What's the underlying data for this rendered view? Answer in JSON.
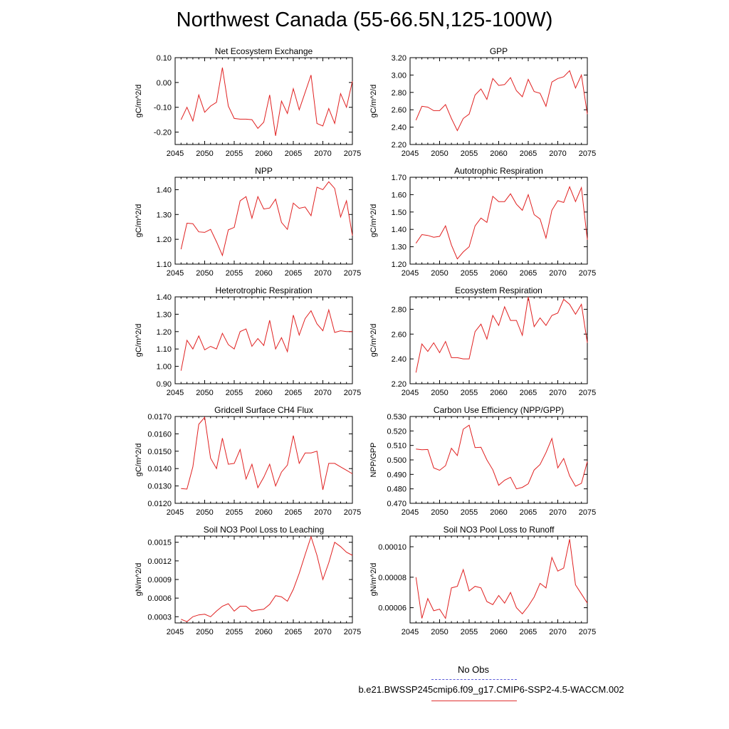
{
  "title": "Northwest Canada (55-66.5N,125-100W)",
  "legend": {
    "obs_label": "No Obs",
    "case_label": "b.e21.BWSSP245cmip6.f09_g17.CMIP6-SSP2-4.5-WACCM.002",
    "obs_color": "#5a5ad8",
    "case_color": "#e02020"
  },
  "chart_data": [
    {
      "type": "line",
      "title": "Net Ecosystem Exchange",
      "ylabel": "gC/m^2/d",
      "x_ticks": [
        "2045",
        "2050",
        "2055",
        "2060",
        "2065",
        "2070",
        "2075"
      ],
      "y_ticks": [
        "0.10",
        "0.00",
        "-0.10",
        "-0.20"
      ],
      "ylim": [
        -0.25,
        0.1
      ],
      "xlim": [
        2045,
        2075
      ],
      "series": [
        {
          "x": [
            2046,
            2047,
            2048,
            2049,
            2050,
            2051,
            2052,
            2053,
            2054,
            2055,
            2056,
            2057,
            2058,
            2059,
            2060,
            2061,
            2062,
            2063,
            2064,
            2065,
            2066,
            2067,
            2068,
            2069,
            2070,
            2071,
            2072,
            2073,
            2074,
            2075
          ],
          "values": [
            -0.15,
            -0.1,
            -0.155,
            -0.05,
            -0.12,
            -0.095,
            -0.08,
            0.06,
            -0.095,
            -0.145,
            -0.148,
            -0.148,
            -0.15,
            -0.185,
            -0.16,
            -0.05,
            -0.215,
            -0.075,
            -0.125,
            -0.025,
            -0.11,
            -0.04,
            0.03,
            -0.165,
            -0.175,
            -0.105,
            -0.165,
            -0.045,
            -0.1,
            0.005
          ]
        }
      ]
    },
    {
      "type": "line",
      "title": "GPP",
      "ylabel": "gC/m^2/d",
      "x_ticks": [
        "2045",
        "2050",
        "2055",
        "2060",
        "2065",
        "2070",
        "2075"
      ],
      "y_ticks": [
        "3.20",
        "3.00",
        "2.80",
        "2.60",
        "2.40",
        "2.20"
      ],
      "ylim": [
        2.2,
        3.2
      ],
      "xlim": [
        2045,
        2075
      ],
      "series": [
        {
          "x": [
            2046,
            2047,
            2048,
            2049,
            2050,
            2051,
            2052,
            2053,
            2054,
            2055,
            2056,
            2057,
            2058,
            2059,
            2060,
            2061,
            2062,
            2063,
            2064,
            2065,
            2066,
            2067,
            2068,
            2069,
            2070,
            2071,
            2072,
            2073,
            2074,
            2075
          ],
          "values": [
            2.48,
            2.64,
            2.63,
            2.59,
            2.59,
            2.66,
            2.5,
            2.36,
            2.5,
            2.55,
            2.77,
            2.84,
            2.72,
            2.96,
            2.88,
            2.89,
            2.97,
            2.82,
            2.75,
            2.95,
            2.81,
            2.79,
            2.64,
            2.92,
            2.96,
            2.98,
            3.05,
            2.85,
            3.0,
            2.55
          ]
        }
      ]
    },
    {
      "type": "line",
      "title": "NPP",
      "ylabel": "gC/m^2/d",
      "x_ticks": [
        "2045",
        "2050",
        "2055",
        "2060",
        "2065",
        "2070",
        "2075"
      ],
      "y_ticks": [
        "1.40",
        "1.30",
        "1.20",
        "1.10"
      ],
      "ylim": [
        1.1,
        1.45
      ],
      "xlim": [
        2045,
        2075
      ],
      "series": [
        {
          "x": [
            2046,
            2047,
            2048,
            2049,
            2050,
            2051,
            2052,
            2053,
            2054,
            2055,
            2056,
            2057,
            2058,
            2059,
            2060,
            2061,
            2062,
            2063,
            2064,
            2065,
            2066,
            2067,
            2068,
            2069,
            2070,
            2071,
            2072,
            2073,
            2074,
            2075
          ],
          "values": [
            1.16,
            1.265,
            1.263,
            1.23,
            1.228,
            1.24,
            1.19,
            1.135,
            1.238,
            1.248,
            1.355,
            1.372,
            1.285,
            1.372,
            1.322,
            1.326,
            1.362,
            1.268,
            1.24,
            1.346,
            1.325,
            1.33,
            1.295,
            1.41,
            1.4,
            1.432,
            1.405,
            1.29,
            1.355,
            1.215
          ]
        }
      ]
    },
    {
      "type": "line",
      "title": "Autotrophic Respiration",
      "ylabel": "gC/m^2/d",
      "x_ticks": [
        "2045",
        "2050",
        "2055",
        "2060",
        "2065",
        "2070",
        "2075"
      ],
      "y_ticks": [
        "1.70",
        "1.60",
        "1.50",
        "1.40",
        "1.30",
        "1.20"
      ],
      "ylim": [
        1.2,
        1.7
      ],
      "xlim": [
        2045,
        2075
      ],
      "series": [
        {
          "x": [
            2046,
            2047,
            2048,
            2049,
            2050,
            2051,
            2052,
            2053,
            2054,
            2055,
            2056,
            2057,
            2058,
            2059,
            2060,
            2061,
            2062,
            2063,
            2064,
            2065,
            2066,
            2067,
            2068,
            2069,
            2070,
            2071,
            2072,
            2073,
            2074,
            2075
          ],
          "values": [
            1.32,
            1.37,
            1.365,
            1.355,
            1.36,
            1.42,
            1.31,
            1.23,
            1.27,
            1.3,
            1.42,
            1.465,
            1.44,
            1.59,
            1.56,
            1.56,
            1.605,
            1.545,
            1.51,
            1.6,
            1.485,
            1.46,
            1.35,
            1.51,
            1.565,
            1.555,
            1.645,
            1.56,
            1.64,
            1.34
          ]
        }
      ]
    },
    {
      "type": "line",
      "title": "Heterotrophic Respiration",
      "ylabel": "gC/m^2/d",
      "x_ticks": [
        "2045",
        "2050",
        "2055",
        "2060",
        "2065",
        "2070",
        "2075"
      ],
      "y_ticks": [
        "1.40",
        "1.30",
        "1.20",
        "1.10",
        "1.00",
        "0.90"
      ],
      "ylim": [
        0.9,
        1.4
      ],
      "xlim": [
        2045,
        2075
      ],
      "series": [
        {
          "x": [
            2046,
            2047,
            2048,
            2049,
            2050,
            2051,
            2052,
            2053,
            2054,
            2055,
            2056,
            2057,
            2058,
            2059,
            2060,
            2061,
            2062,
            2063,
            2064,
            2065,
            2066,
            2067,
            2068,
            2069,
            2070,
            2071,
            2072,
            2073,
            2074,
            2075
          ],
          "values": [
            0.975,
            1.15,
            1.1,
            1.175,
            1.095,
            1.115,
            1.1,
            1.19,
            1.125,
            1.1,
            1.2,
            1.215,
            1.115,
            1.16,
            1.12,
            1.265,
            1.1,
            1.165,
            1.085,
            1.295,
            1.18,
            1.275,
            1.32,
            1.245,
            1.205,
            1.325,
            1.195,
            1.205,
            1.2,
            1.2
          ]
        }
      ]
    },
    {
      "type": "line",
      "title": "Ecosystem Respiration",
      "ylabel": "gC/m^2/d",
      "x_ticks": [
        "2045",
        "2050",
        "2055",
        "2060",
        "2065",
        "2070",
        "2075"
      ],
      "y_ticks": [
        "2.80",
        "2.60",
        "2.40",
        "2.20"
      ],
      "ylim": [
        2.2,
        2.9
      ],
      "xlim": [
        2045,
        2075
      ],
      "series": [
        {
          "x": [
            2046,
            2047,
            2048,
            2049,
            2050,
            2051,
            2052,
            2053,
            2054,
            2055,
            2056,
            2057,
            2058,
            2059,
            2060,
            2061,
            2062,
            2063,
            2064,
            2065,
            2066,
            2067,
            2068,
            2069,
            2070,
            2071,
            2072,
            2073,
            2074,
            2075
          ],
          "values": [
            2.29,
            2.52,
            2.46,
            2.53,
            2.45,
            2.54,
            2.41,
            2.41,
            2.4,
            2.4,
            2.62,
            2.68,
            2.56,
            2.75,
            2.67,
            2.82,
            2.71,
            2.71,
            2.59,
            2.9,
            2.66,
            2.73,
            2.67,
            2.75,
            2.77,
            2.88,
            2.84,
            2.76,
            2.84,
            2.53
          ]
        }
      ]
    },
    {
      "type": "line",
      "title": "Gridcell Surface CH4 Flux",
      "ylabel": "gC/m^2/d",
      "x_ticks": [
        "2045",
        "2050",
        "2055",
        "2060",
        "2065",
        "2070",
        "2075"
      ],
      "y_ticks": [
        "0.0170",
        "0.0160",
        "0.0150",
        "0.0140",
        "0.0130",
        "0.0120"
      ],
      "ylim": [
        0.012,
        0.017
      ],
      "xlim": [
        2045,
        2075
      ],
      "series": [
        {
          "x": [
            2046,
            2047,
            2048,
            2049,
            2050,
            2051,
            2052,
            2053,
            2054,
            2055,
            2056,
            2057,
            2058,
            2059,
            2060,
            2061,
            2062,
            2063,
            2064,
            2065,
            2066,
            2067,
            2068,
            2069,
            2070,
            2071,
            2072,
            2073,
            2074,
            2075
          ],
          "values": [
            0.01285,
            0.01282,
            0.0141,
            0.01655,
            0.01695,
            0.0146,
            0.014,
            0.01575,
            0.01425,
            0.0143,
            0.0151,
            0.0134,
            0.01425,
            0.0129,
            0.0135,
            0.01425,
            0.013,
            0.0138,
            0.0142,
            0.0159,
            0.0143,
            0.0149,
            0.0149,
            0.015,
            0.01278,
            0.0143,
            0.0143,
            0.0141,
            0.0139,
            0.0137
          ]
        }
      ]
    },
    {
      "type": "line",
      "title": "Carbon Use Efficiency (NPP/GPP)",
      "ylabel": "NPP/GPP",
      "x_ticks": [
        "2045",
        "2050",
        "2055",
        "2060",
        "2065",
        "2070",
        "2075"
      ],
      "y_ticks": [
        "0.530",
        "0.520",
        "0.510",
        "0.500",
        "0.490",
        "0.480",
        "0.470"
      ],
      "ylim": [
        0.47,
        0.53
      ],
      "xlim": [
        2045,
        2075
      ],
      "series": [
        {
          "x": [
            2046,
            2047,
            2048,
            2049,
            2050,
            2051,
            2052,
            2053,
            2054,
            2055,
            2056,
            2057,
            2058,
            2059,
            2060,
            2061,
            2062,
            2063,
            2064,
            2065,
            2066,
            2067,
            2068,
            2069,
            2070,
            2071,
            2072,
            2073,
            2074,
            2075
          ],
          "values": [
            0.5075,
            0.507,
            0.5072,
            0.4945,
            0.4928,
            0.496,
            0.508,
            0.503,
            0.5212,
            0.524,
            0.5085,
            0.5087,
            0.5,
            0.4932,
            0.4825,
            0.486,
            0.488,
            0.48,
            0.481,
            0.4835,
            0.493,
            0.4968,
            0.505,
            0.5148,
            0.4945,
            0.501,
            0.489,
            0.4818,
            0.4838,
            0.4988
          ]
        }
      ]
    },
    {
      "type": "line",
      "title": "Soil NO3 Pool Loss to Leaching",
      "ylabel": "gN/m^2/d",
      "x_ticks": [
        "2045",
        "2050",
        "2055",
        "2060",
        "2065",
        "2070",
        "2075"
      ],
      "y_ticks": [
        "0.0015",
        "0.0012",
        "0.0009",
        "0.0006",
        "0.0003"
      ],
      "ylim": [
        0.0002,
        0.0016
      ],
      "xlim": [
        2045,
        2075
      ],
      "series": [
        {
          "x": [
            2046,
            2047,
            2048,
            2049,
            2050,
            2051,
            2052,
            2053,
            2054,
            2055,
            2056,
            2057,
            2058,
            2059,
            2060,
            2061,
            2062,
            2063,
            2064,
            2065,
            2066,
            2067,
            2068,
            2069,
            2070,
            2071,
            2072,
            2073,
            2074,
            2075
          ],
          "values": [
            0.00026,
            0.00022,
            0.0003,
            0.00033,
            0.00034,
            0.0003,
            0.00039,
            0.00047,
            0.00051,
            0.00039,
            0.00047,
            0.00047,
            0.00039,
            0.00041,
            0.00042,
            0.0005,
            0.00064,
            0.00062,
            0.00055,
            0.00074,
            0.001,
            0.0013,
            0.00159,
            0.00129,
            0.0009,
            0.00117,
            0.0015,
            0.00143,
            0.00134,
            0.00129
          ]
        }
      ]
    },
    {
      "type": "line",
      "title": "Soil NO3 Pool Loss to Runoff",
      "ylabel": "gN/m^2/d",
      "x_ticks": [
        "2045",
        "2050",
        "2055",
        "2060",
        "2065",
        "2070",
        "2075"
      ],
      "y_ticks": [
        "0.00010",
        "0.00008",
        "0.00006"
      ],
      "ylim": [
        5e-05,
        0.000107
      ],
      "xlim": [
        2045,
        2075
      ],
      "series": [
        {
          "x": [
            2046,
            2047,
            2048,
            2049,
            2050,
            2051,
            2052,
            2053,
            2054,
            2055,
            2056,
            2057,
            2058,
            2059,
            2060,
            2061,
            2062,
            2063,
            2064,
            2065,
            2066,
            2067,
            2068,
            2069,
            2070,
            2071,
            2072,
            2073,
            2074,
            2075
          ],
          "values": [
            8e-05,
            5.3e-05,
            6.6e-05,
            5.8e-05,
            5.9e-05,
            5.3e-05,
            7.3e-05,
            7.4e-05,
            8.5e-05,
            7.1e-05,
            7.4e-05,
            7.3e-05,
            6.4e-05,
            6.2e-05,
            6.8e-05,
            6.3e-05,
            7e-05,
            6e-05,
            5.6e-05,
            6.1e-05,
            6.7e-05,
            7.6e-05,
            7.3e-05,
            9.3e-05,
            8.4e-05,
            8.6e-05,
            0.000105,
            7.5e-05,
            6.9e-05,
            6.3e-05
          ]
        }
      ]
    }
  ]
}
